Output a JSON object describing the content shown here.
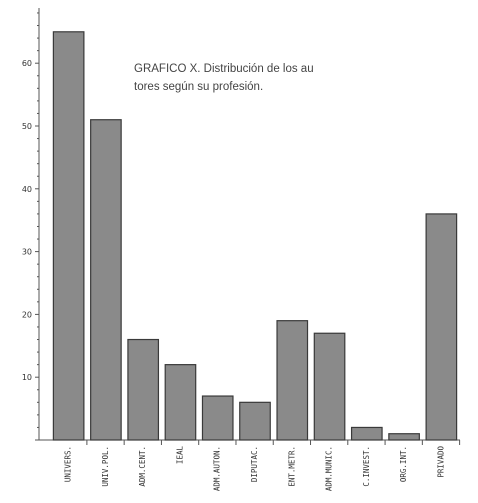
{
  "chart_data": {
    "type": "bar",
    "title_lines": [
      "GRAFICO X. Distribución de los au",
      "tores según su profesión."
    ],
    "categories": [
      "UNIVERS.",
      "UNIV.POL.",
      "ADM.CENT.",
      "IEAL",
      "ADM.AUTON.",
      "DIPUTAC.",
      "ENT.METR.",
      "ADM.MUNIC.",
      "C.INVEST.",
      "ORG.INT.",
      "PRIVADO"
    ],
    "values": [
      65,
      51,
      16,
      12,
      7,
      6,
      19,
      17,
      2,
      1,
      36
    ],
    "ylim": [
      0,
      70
    ],
    "yticks": [
      10,
      20,
      30,
      40,
      50,
      60
    ],
    "grid": false,
    "colors": {
      "bar": "#8a8a8a",
      "bar_edge": "#3a3a3a",
      "axis": "#555555"
    }
  }
}
